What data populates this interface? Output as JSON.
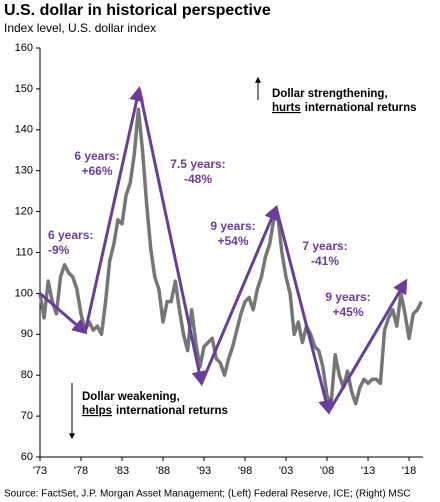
{
  "chart_data": {
    "type": "line",
    "title": "U.S. dollar in historical perspective",
    "subtitle": "Index level, U.S. dollar index",
    "source": "Source: FactSet, J.P. Morgan Asset Management; (Left) Federal Reserve, ICE; (Right) MSC",
    "color": "#767676",
    "x": [
      1973,
      1973.5,
      1974,
      1974.5,
      1975,
      1975.5,
      1976,
      1976.5,
      1977,
      1977.5,
      1978,
      1978.5,
      1979,
      1979.5,
      1980,
      1980.5,
      1981,
      1981.5,
      1982,
      1982.5,
      1983,
      1983.5,
      1984,
      1984.5,
      1985,
      1985.5,
      1986,
      1986.5,
      1987,
      1987.5,
      1988,
      1988.5,
      1989,
      1989.5,
      1990,
      1990.5,
      1991,
      1991.5,
      1992,
      1992.5,
      1993,
      1993.5,
      1994,
      1994.5,
      1995,
      1995.5,
      1996,
      1996.5,
      1997,
      1997.5,
      1998,
      1998.5,
      1999,
      1999.5,
      2000,
      2000.5,
      2001,
      2001.5,
      2002,
      2002.5,
      2003,
      2003.5,
      2004,
      2004.5,
      2005,
      2005.5,
      2006,
      2006.5,
      2007,
      2007.5,
      2008,
      2008.5,
      2009,
      2009.5,
      2010,
      2010.5,
      2011,
      2011.5,
      2012,
      2012.5,
      2013,
      2013.5,
      2014,
      2014.5,
      2015,
      2015.5,
      2016,
      2016.5,
      2017,
      2017.5,
      2018,
      2018.5,
      2019,
      2019.5
    ],
    "values": [
      100,
      94,
      103,
      98,
      95,
      104,
      107,
      105,
      104,
      101,
      95,
      91,
      93,
      91,
      92,
      90,
      98,
      108,
      112,
      118,
      117,
      124,
      127,
      134,
      145,
      135,
      122,
      111,
      104,
      101,
      93,
      98,
      98,
      103,
      96,
      90,
      86,
      96,
      88,
      82,
      87,
      88,
      89,
      84,
      83,
      80,
      84,
      87,
      91,
      95,
      98,
      99,
      96,
      101,
      104,
      109,
      112,
      118,
      119,
      110,
      104,
      100,
      90,
      93,
      88,
      92,
      90,
      87,
      86,
      82,
      75,
      73,
      85,
      80,
      77,
      81,
      76,
      73,
      77,
      79,
      78,
      79,
      79,
      78,
      91,
      94,
      96,
      92,
      100,
      95,
      89,
      95,
      96,
      98
    ],
    "trend": {
      "color": "#6a3d9a",
      "x": [
        1973,
        1978.5,
        1985.1,
        1992.7,
        2001.8,
        2008.2,
        2017.6
      ],
      "values": [
        100,
        90.5,
        150,
        78,
        121,
        71,
        103
      ]
    },
    "annotations": [
      [
        "6 years:",
        "-9%"
      ],
      [
        "6 years:",
        "+66%"
      ],
      [
        "7.5 years:",
        "-48%"
      ],
      [
        "9 years:",
        "+54%"
      ],
      [
        "7 years:",
        "-41%"
      ],
      [
        "9 years:",
        "+45%"
      ]
    ],
    "note_up": {
      "line1": "Dollar strengthening,",
      "emph": "hurts",
      "rest": "international returns"
    },
    "note_down": {
      "line1": "Dollar weakening,",
      "emph": "helps",
      "rest": "international returns"
    },
    "xlim": [
      1973,
      2019.7
    ],
    "xticks": [
      {
        "value": 1973,
        "label": "'73"
      },
      {
        "value": 1978,
        "label": "'78"
      },
      {
        "value": 1983,
        "label": "'83"
      },
      {
        "value": 1988,
        "label": "'88"
      },
      {
        "value": 1993,
        "label": "'93"
      },
      {
        "value": 1998,
        "label": "'98"
      },
      {
        "value": 2003,
        "label": "'03"
      },
      {
        "value": 2008,
        "label": "'08"
      },
      {
        "value": 2013,
        "label": "'13"
      },
      {
        "value": 2018,
        "label": "'18"
      }
    ],
    "ylim": [
      60,
      160
    ],
    "yticks": [
      60,
      70,
      80,
      90,
      100,
      110,
      120,
      130,
      140,
      150,
      160
    ]
  }
}
